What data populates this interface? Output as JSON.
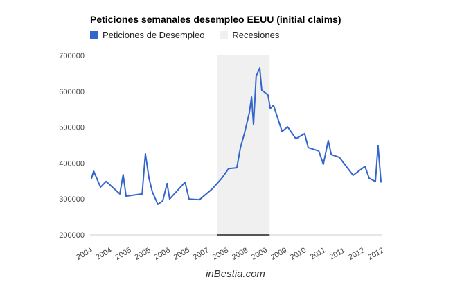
{
  "chart_data": {
    "type": "line",
    "title": "Peticiones semanales desempleo EEUU (initial claims)",
    "legend": {
      "placement": "top-left",
      "entries": [
        {
          "label": "Peticiones de Desempleo",
          "color": "#3366cc"
        },
        {
          "label": "Recesiones",
          "color": "#f0f0f0"
        }
      ]
    },
    "xlabel": "",
    "ylabel": "",
    "xlim": [
      2004.0,
      2012.9
    ],
    "ylim": [
      200000,
      700000
    ],
    "y_ticks": [
      "200000",
      "300000",
      "400000",
      "500000",
      "600000",
      "700000"
    ],
    "x_tick_labels": [
      "2004",
      "2004",
      "2005",
      "2005",
      "2006",
      "2006",
      "2007",
      "2008",
      "2008",
      "2009",
      "2009",
      "2010",
      "2011",
      "2011",
      "2012",
      "2012"
    ],
    "recession": [
      2007.87,
      2009.48
    ],
    "series": [
      {
        "name": "Peticiones de Desempleo",
        "color": "#3366cc",
        "x": [
          2004.04,
          2004.11,
          2004.32,
          2004.49,
          2004.91,
          2005.01,
          2005.1,
          2005.59,
          2005.69,
          2005.8,
          2005.9,
          2006.07,
          2006.22,
          2006.35,
          2006.43,
          2006.9,
          2007.02,
          2007.34,
          2007.74,
          2008.02,
          2008.23,
          2008.48,
          2008.59,
          2008.71,
          2008.86,
          2008.93,
          2008.99,
          2009.07,
          2009.18,
          2009.24,
          2009.43,
          2009.5,
          2009.6,
          2009.86,
          2010.03,
          2010.28,
          2010.55,
          2010.66,
          2010.98,
          2011.12,
          2011.27,
          2011.36,
          2011.61,
          2012.03,
          2012.39,
          2012.52,
          2012.71,
          2012.79,
          2012.88
        ],
        "values": [
          356000,
          378000,
          333000,
          349000,
          314000,
          368000,
          308000,
          314000,
          426000,
          358000,
          320000,
          285000,
          295000,
          343000,
          300000,
          347000,
          300000,
          298000,
          329000,
          358000,
          385000,
          387000,
          443000,
          482000,
          540000,
          584000,
          507000,
          642000,
          665000,
          603000,
          590000,
          552000,
          561000,
          488000,
          501000,
          468000,
          482000,
          443000,
          434000,
          397000,
          463000,
          424000,
          416000,
          366000,
          391000,
          358000,
          349000,
          449000,
          347000
        ]
      }
    ],
    "grid": false
  },
  "footer": "inBestia.com"
}
